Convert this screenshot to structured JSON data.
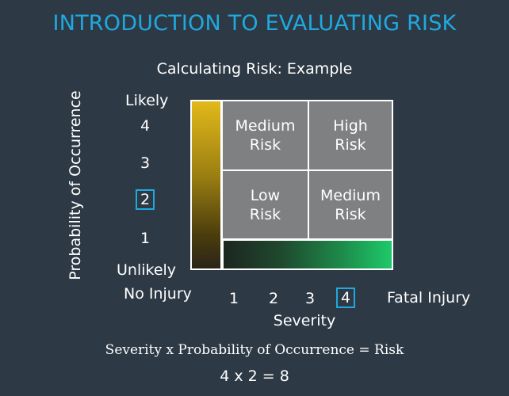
{
  "title": "INTRODUCTION TO EVALUATING RISK",
  "subtitle": "Calculating Risk: Example",
  "y_axis": {
    "label": "Probability of Occurrence",
    "top_label": "Likely",
    "bottom_label": "Unlikely",
    "ticks": [
      "4",
      "3",
      "2",
      "1"
    ],
    "highlighted_tick": "2"
  },
  "x_axis": {
    "label": "Severity",
    "left_label": "No Injury",
    "right_label": "Fatal Injury",
    "ticks": [
      "1",
      "2",
      "3",
      "4"
    ],
    "highlighted_tick": "4"
  },
  "matrix": {
    "top_left": "Medium\nRisk",
    "top_right": "High\nRisk",
    "bottom_left": "Low\nRisk",
    "bottom_right": "Medium\nRisk"
  },
  "formula": "Severity x Probability of Occurrence = Risk",
  "result": "4 x 2 = 8",
  "colors": {
    "accent": "#1fa9e0",
    "background": "#2d3945",
    "cell": "#7e8081",
    "gradient_vertical_start": "#e2b91a",
    "gradient_horizontal_end": "#1ec96a"
  }
}
